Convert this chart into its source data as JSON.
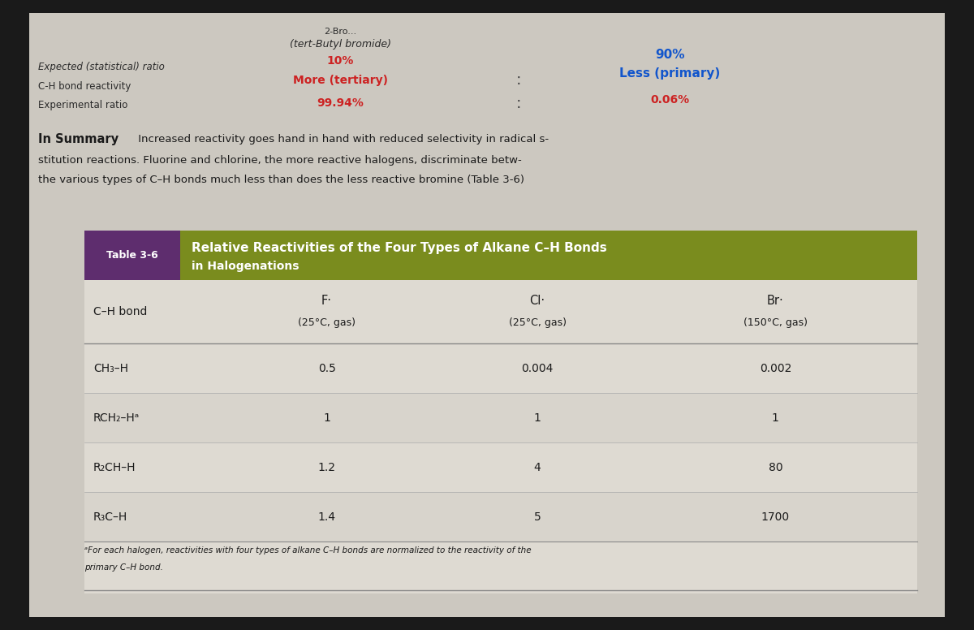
{
  "bg_color": "#1a1a1a",
  "page_bg": "#ccc8c0",
  "top_left_labels": [
    "Expected (statistical) ratio",
    "C-H bond reactivity",
    "Experimental ratio"
  ],
  "top_center_title1": "2-Bro...",
  "top_center_title2": "(tert-Butyl bromide)",
  "top_center_red": [
    "10%",
    "More (tertiary)",
    "99.94%"
  ],
  "top_right_blue": [
    "90%",
    "Less (primary)"
  ],
  "top_right_red": "0.06%",
  "summary_bold": "In Summary",
  "summary_line1": " Increased reactivity goes hand in hand with reduced selectivity in radical s-",
  "summary_line2": "stitution reactions. Fluorine and chlorine, the more reactive halogens, discriminate betw-",
  "summary_line3": "the various types of C–H bonds much less than does the less reactive bromine (Table 3-6)",
  "table_label_bg": "#5e2d6e",
  "table_label_text": "Table 3-6",
  "table_header_bg": "#7a8c1e",
  "table_header_title": "Relative Reactivities of the Four Types of Alkane C–H Bonds",
  "table_header_subtitle": "in Halogenations",
  "table_body_bg": "#dedad2",
  "col_header_bg": "#dedad2",
  "col0_header": "C–H bond",
  "col1_header_line1": "F·",
  "col1_header_line2": "(25°C, gas)",
  "col2_header_line1": "Cl·",
  "col2_header_line2": "(25°C, gas)",
  "col3_header_line1": "Br·",
  "col3_header_line2": "(150°C, gas)",
  "row_labels": [
    "CH₃–H",
    "RCH₂–Hᵃ",
    "R₂CH–H",
    "R₃C–H"
  ],
  "f_values": [
    "0.5",
    "1",
    "1.2",
    "1.4"
  ],
  "cl_values": [
    "0.004",
    "1",
    "4",
    "5"
  ],
  "br_values": [
    "0.002",
    "1",
    "80",
    "1700"
  ],
  "footnote_line1": "ᵃFor each halogen, reactivities with four types of alkane C–H bonds are normalized to the reactivity of the",
  "footnote_line2": "primary C–H bond."
}
